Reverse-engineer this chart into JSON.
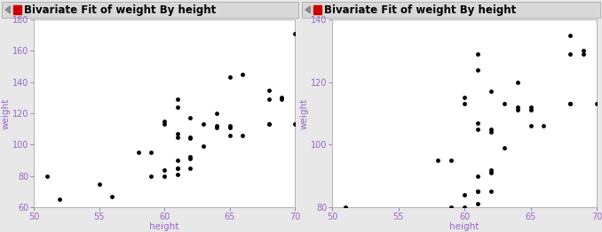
{
  "title": "Bivariate Fit of weight By height",
  "xlabel": "height",
  "ylabel": "weight",
  "xlabel_color": "#9966cc",
  "ylabel_color": "#9966cc",
  "tick_color": "#9966cc",
  "bg_color": "#e8e8e8",
  "plot_bg": "#ffffff",
  "border_color": "#aaaaaa",
  "header_bg": "#d8d8d8",
  "points": [
    [
      51,
      80
    ],
    [
      52,
      65
    ],
    [
      55,
      75
    ],
    [
      56,
      67
    ],
    [
      58,
      95
    ],
    [
      59,
      95
    ],
    [
      59,
      80
    ],
    [
      60,
      115
    ],
    [
      60,
      113
    ],
    [
      60,
      84
    ],
    [
      60,
      80
    ],
    [
      61,
      129
    ],
    [
      61,
      124
    ],
    [
      61,
      107
    ],
    [
      61,
      105
    ],
    [
      61,
      90
    ],
    [
      61,
      85
    ],
    [
      61,
      85
    ],
    [
      61,
      81
    ],
    [
      62,
      117
    ],
    [
      62,
      105
    ],
    [
      62,
      104
    ],
    [
      62,
      92
    ],
    [
      62,
      91
    ],
    [
      62,
      85
    ],
    [
      63,
      113
    ],
    [
      63,
      99
    ],
    [
      64,
      120
    ],
    [
      64,
      112
    ],
    [
      64,
      111
    ],
    [
      65,
      143
    ],
    [
      65,
      112
    ],
    [
      65,
      111
    ],
    [
      65,
      106
    ],
    [
      66,
      145
    ],
    [
      66,
      106
    ],
    [
      68,
      135
    ],
    [
      68,
      129
    ],
    [
      68,
      113
    ],
    [
      68,
      113
    ],
    [
      69,
      130
    ],
    [
      69,
      129
    ],
    [
      70,
      171
    ],
    [
      70,
      113
    ]
  ],
  "plot1_ylim": [
    60,
    180
  ],
  "plot1_yticks": [
    60,
    80,
    100,
    120,
    140,
    160,
    180
  ],
  "plot2_ylim": [
    80,
    140
  ],
  "plot2_yticks": [
    80,
    100,
    120,
    140
  ],
  "xlim": [
    50,
    70
  ],
  "xticks": [
    50,
    55,
    60,
    65,
    70
  ],
  "marker_color": "black",
  "marker_size": 3.5,
  "title_fontsize": 8.5,
  "axis_label_fontsize": 7.5,
  "tick_fontsize": 7,
  "header_triangle_color": "#888888",
  "red_square_color": "#cc0000"
}
